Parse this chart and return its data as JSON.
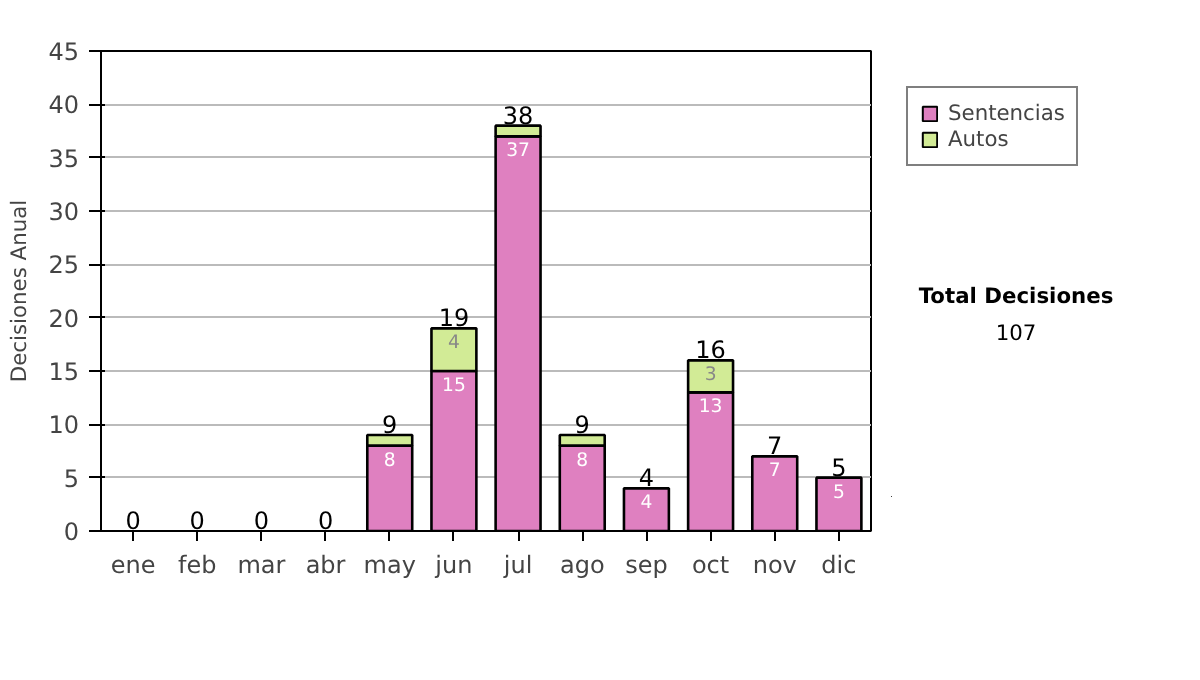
{
  "chart_data": {
    "type": "bar",
    "stacked": true,
    "ylabel": "Decisiones Anual",
    "categories": [
      "ene",
      "feb",
      "mar",
      "abr",
      "may",
      "jun",
      "jul",
      "ago",
      "sep",
      "oct",
      "nov",
      "dic"
    ],
    "series": [
      {
        "name": "Sentencias",
        "color": "#df80c0",
        "values": [
          0,
          0,
          0,
          0,
          8,
          15,
          37,
          8,
          4,
          13,
          7,
          5
        ],
        "value_labels": [
          null,
          null,
          null,
          null,
          "8",
          "15",
          "37",
          "8",
          "4",
          "13",
          "7",
          "5"
        ]
      },
      {
        "name": "Autos",
        "color": "#d2eb96",
        "values": [
          0,
          0,
          0,
          0,
          1,
          4,
          1,
          1,
          0,
          3,
          0,
          0
        ],
        "value_labels": [
          null,
          null,
          null,
          null,
          null,
          "4",
          null,
          null,
          null,
          "3",
          null,
          null
        ]
      }
    ],
    "totals": [
      "0",
      "0",
      "0",
      "0",
      "9",
      "19",
      "38",
      "9",
      "4",
      "16",
      "7",
      "5"
    ],
    "ylim": [
      0,
      45
    ],
    "yticks": [
      0,
      5,
      10,
      15,
      20,
      25,
      30,
      35,
      40,
      45
    ],
    "grid": "y",
    "legend": "right",
    "annotations": [
      "Total Decisiones",
      "107"
    ]
  }
}
